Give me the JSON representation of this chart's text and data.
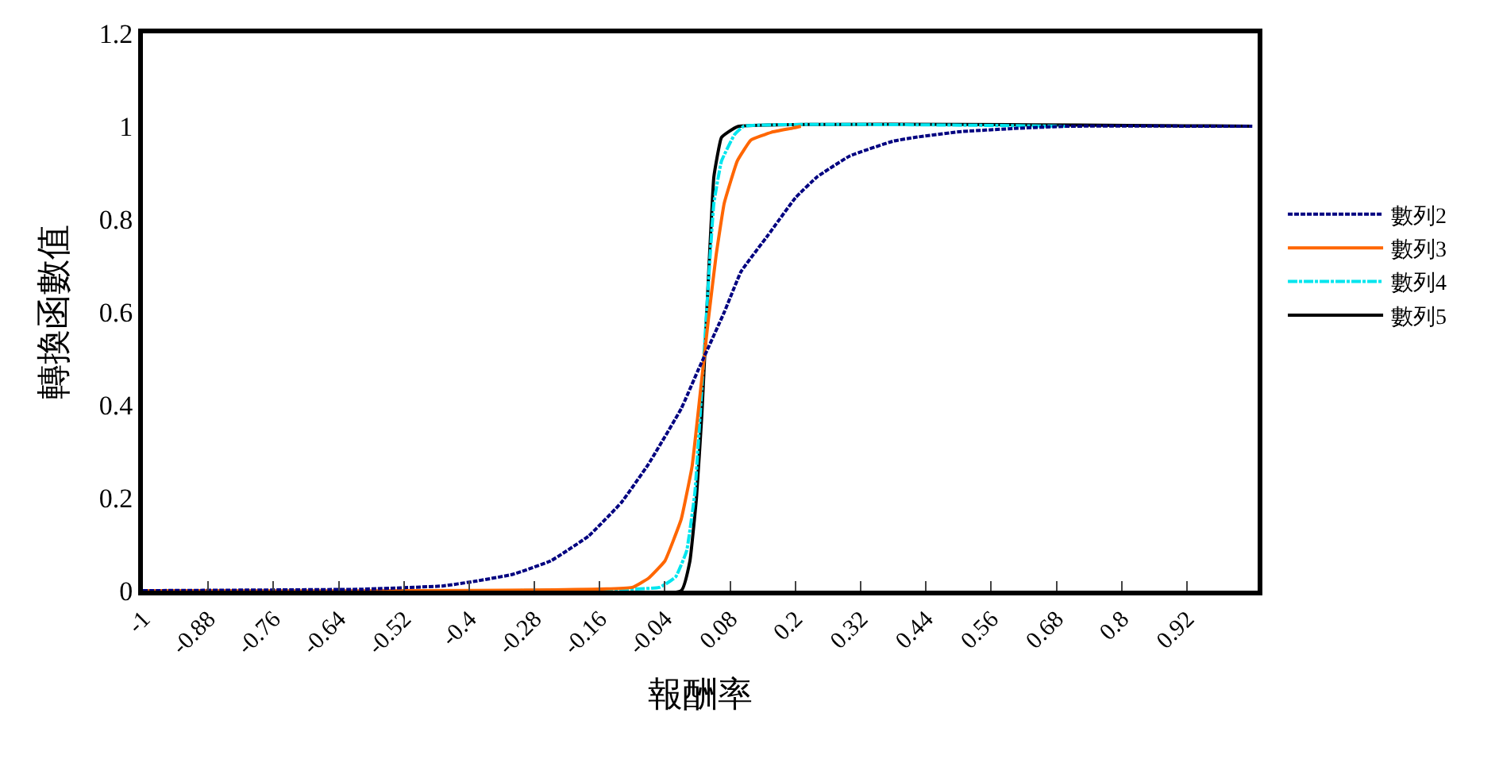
{
  "chart_data": {
    "type": "line",
    "xlabel": "報酬率",
    "ylabel": "轉換函數值",
    "xlim": [
      -1,
      1.05
    ],
    "xticks": [
      -1,
      -0.88,
      -0.76,
      -0.64,
      -0.52,
      -0.4,
      -0.28,
      -0.16,
      -0.04,
      0.08,
      0.2,
      0.32,
      0.44,
      0.56,
      0.68,
      0.8,
      0.92
    ],
    "ylim": [
      0,
      1.2
    ],
    "yticks": [
      0,
      0.2,
      0.4,
      0.6,
      0.8,
      1,
      1.2
    ],
    "legend": "right",
    "marker": "none",
    "series": [
      {
        "name": "數列2",
        "color": "#000080",
        "line_style": "dotted",
        "x": [
          -1,
          -0.6,
          -0.45,
          -0.39,
          -0.32,
          -0.25,
          -0.18,
          -0.12,
          -0.07,
          -0.01,
          0.02,
          0.07,
          0.1,
          0.15,
          0.2,
          0.24,
          0.3,
          0.38,
          0.42,
          0.5,
          0.6,
          0.7,
          1.04
        ],
        "values": [
          0,
          0.003,
          0.01,
          0.02,
          0.035,
          0.064,
          0.118,
          0.19,
          0.273,
          0.392,
          0.472,
          0.602,
          0.687,
          0.766,
          0.846,
          0.891,
          0.936,
          0.968,
          0.976,
          0.988,
          0.995,
          1,
          1
        ]
      },
      {
        "name": "數列3",
        "color": "#ff6600",
        "line_style": "solid",
        "x": [
          -1,
          -0.1,
          -0.07,
          -0.04,
          -0.01,
          0.01,
          0.025,
          0.04,
          0.054,
          0.069,
          0.093,
          0.118,
          0.156,
          0.195,
          0.21
        ],
        "values": [
          0,
          0.007,
          0.027,
          0.064,
          0.154,
          0.268,
          0.426,
          0.585,
          0.721,
          0.834,
          0.925,
          0.97,
          0.987,
          0.996,
          1
        ]
      },
      {
        "name": "數列4",
        "color": "#00e5ee",
        "line_style": "dashdot",
        "x": [
          -1,
          -0.05,
          -0.02,
          0.0,
          0.015,
          0.028,
          0.04,
          0.05,
          0.064,
          0.088,
          0.105,
          0.7
        ],
        "values": [
          0,
          0.007,
          0.03,
          0.086,
          0.21,
          0.438,
          0.664,
          0.834,
          0.925,
          0.982,
          1,
          1
        ]
      },
      {
        "name": "數列5",
        "color": "#000000",
        "line_style": "solid",
        "x": [
          -1,
          -0.01,
          0.006,
          0.018,
          0.028,
          0.035,
          0.042,
          0.05,
          0.064,
          0.093,
          1.04
        ],
        "values": [
          0,
          0,
          0.064,
          0.2,
          0.381,
          0.551,
          0.721,
          0.891,
          0.976,
          0.999,
          1
        ]
      }
    ]
  }
}
